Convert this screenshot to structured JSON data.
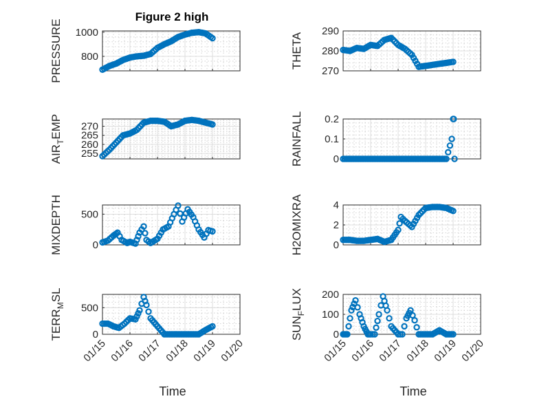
{
  "figure_title": "Figure 2 high",
  "x_tick_labels": [
    "01/15",
    "01/16",
    "01/17",
    "01/18",
    "01/19",
    "01/20"
  ],
  "x_label": "Time",
  "marker_color": "#0072BD",
  "chart_data": [
    {
      "type": "scatter",
      "id": "pressure",
      "title": "Figure 2 high",
      "ylabel": "PRESSURE",
      "xlabel": "",
      "ylim": [
        680,
        1010
      ],
      "yticks": [
        800,
        1000
      ],
      "show_xtick_labels": false,
      "x": [
        0,
        0.25,
        0.5,
        0.75,
        1.0,
        1.25,
        1.5,
        1.75,
        2.0,
        2.25,
        2.5,
        2.75,
        3.0,
        3.25,
        3.5,
        3.75,
        4.0
      ],
      "y": [
        690,
        720,
        740,
        770,
        790,
        800,
        805,
        820,
        870,
        900,
        925,
        960,
        980,
        995,
        1000,
        990,
        950
      ]
    },
    {
      "type": "scatter",
      "id": "theta",
      "title": "",
      "ylabel": "THETA",
      "xlabel": "",
      "ylim": [
        270,
        290
      ],
      "yticks": [
        270,
        280,
        290
      ],
      "show_xtick_labels": false,
      "x": [
        0,
        0.25,
        0.5,
        0.75,
        1.0,
        1.25,
        1.5,
        1.75,
        2.0,
        2.25,
        2.5,
        2.75,
        3.0,
        3.25,
        3.5,
        3.75,
        4.0
      ],
      "y": [
        280.5,
        280.0,
        281.5,
        281.0,
        283.0,
        282.5,
        285.5,
        286.5,
        283.0,
        281.0,
        278.0,
        272.0,
        272.5,
        273.0,
        273.5,
        274.0,
        274.5
      ]
    },
    {
      "type": "scatter",
      "id": "air_temp",
      "title": "",
      "ylabel": "AIR_TEMP",
      "xlabel": "",
      "ylim": [
        252,
        274
      ],
      "yticks": [
        255,
        260,
        265,
        270
      ],
      "show_xtick_labels": false,
      "x": [
        0,
        0.25,
        0.5,
        0.75,
        1.0,
        1.25,
        1.5,
        1.75,
        2.0,
        2.25,
        2.5,
        2.75,
        3.0,
        3.25,
        3.5,
        3.75,
        4.0
      ],
      "y": [
        253.5,
        257.0,
        261.0,
        265.0,
        266.0,
        268.0,
        272.0,
        273.0,
        273.0,
        272.5,
        270.0,
        271.0,
        273.0,
        273.5,
        273.0,
        272.0,
        271.0
      ]
    },
    {
      "type": "scatter",
      "id": "rainfall",
      "title": "",
      "ylabel": "RAINFALL",
      "xlabel": "",
      "ylim": [
        0,
        0.2
      ],
      "yticks": [
        0,
        0.1,
        0.2
      ],
      "show_xtick_labels": false,
      "x": [
        0,
        0.25,
        0.5,
        0.75,
        1.0,
        1.25,
        1.5,
        1.75,
        2.0,
        2.25,
        2.5,
        2.75,
        3.0,
        3.25,
        3.5,
        3.75,
        3.95,
        4.0,
        4.02,
        4.05
      ],
      "y": [
        0,
        0,
        0,
        0,
        0,
        0,
        0,
        0,
        0,
        0,
        0,
        0,
        0,
        0,
        0,
        0,
        0.1,
        0.2,
        0.2,
        0
      ]
    },
    {
      "type": "scatter",
      "id": "mixdepth",
      "title": "",
      "ylabel": "MIXDEPTH",
      "xlabel": "",
      "ylim": [
        0,
        650
      ],
      "yticks": [
        0,
        500
      ],
      "show_xtick_labels": false,
      "x": [
        0,
        0.2,
        0.4,
        0.55,
        0.7,
        0.9,
        1.0,
        1.2,
        1.35,
        1.5,
        1.6,
        1.75,
        2.0,
        2.2,
        2.4,
        2.6,
        2.75,
        2.9,
        3.1,
        3.3,
        3.5,
        3.7,
        3.85,
        4.0
      ],
      "y": [
        40,
        70,
        150,
        200,
        80,
        30,
        50,
        20,
        200,
        300,
        80,
        30,
        100,
        250,
        300,
        500,
        640,
        380,
        580,
        450,
        250,
        120,
        240,
        220
      ]
    },
    {
      "type": "scatter",
      "id": "h2omixra",
      "title": "",
      "ylabel": "H2OMIXRA",
      "xlabel": "",
      "ylim": [
        0,
        4
      ],
      "yticks": [
        0,
        2,
        4
      ],
      "show_xtick_labels": false,
      "x": [
        0,
        0.25,
        0.5,
        0.75,
        1.0,
        1.25,
        1.5,
        1.75,
        2.0,
        2.1,
        2.25,
        2.5,
        2.75,
        3.0,
        3.25,
        3.5,
        3.75,
        4.0
      ],
      "y": [
        0.5,
        0.5,
        0.4,
        0.4,
        0.5,
        0.6,
        0.3,
        0.5,
        1.5,
        2.8,
        2.4,
        1.8,
        3.0,
        3.7,
        3.8,
        3.8,
        3.7,
        3.4
      ]
    },
    {
      "type": "scatter",
      "id": "terr_msl",
      "title": "",
      "ylabel": "TERR_MSL",
      "xlabel": "Time",
      "ylim": [
        0,
        750
      ],
      "yticks": [
        0,
        500
      ],
      "show_xtick_labels": true,
      "x": [
        0,
        0.2,
        0.4,
        0.6,
        0.8,
        1.0,
        1.2,
        1.35,
        1.5,
        1.6,
        1.75,
        2.0,
        2.25,
        2.5,
        2.75,
        3.0,
        3.25,
        3.5,
        3.75,
        4.0
      ],
      "y": [
        200,
        200,
        150,
        120,
        200,
        300,
        280,
        450,
        700,
        550,
        300,
        150,
        0,
        0,
        0,
        0,
        0,
        0,
        80,
        150
      ]
    },
    {
      "type": "scatter",
      "id": "sun_flux",
      "title": "",
      "ylabel": "SUN_FLUX",
      "xlabel": "Time",
      "ylim": [
        0,
        200
      ],
      "yticks": [
        0,
        100,
        200
      ],
      "show_xtick_labels": true,
      "x": [
        0,
        0.15,
        0.3,
        0.45,
        0.6,
        0.75,
        0.9,
        1.0,
        1.15,
        1.3,
        1.45,
        1.6,
        1.75,
        2.0,
        2.15,
        2.3,
        2.45,
        2.6,
        2.75,
        3.0,
        3.25,
        3.5,
        3.75,
        4.0
      ],
      "y": [
        0,
        0,
        120,
        170,
        100,
        40,
        0,
        0,
        0,
        100,
        190,
        120,
        40,
        0,
        0,
        80,
        120,
        70,
        0,
        0,
        0,
        20,
        0,
        0
      ]
    }
  ]
}
